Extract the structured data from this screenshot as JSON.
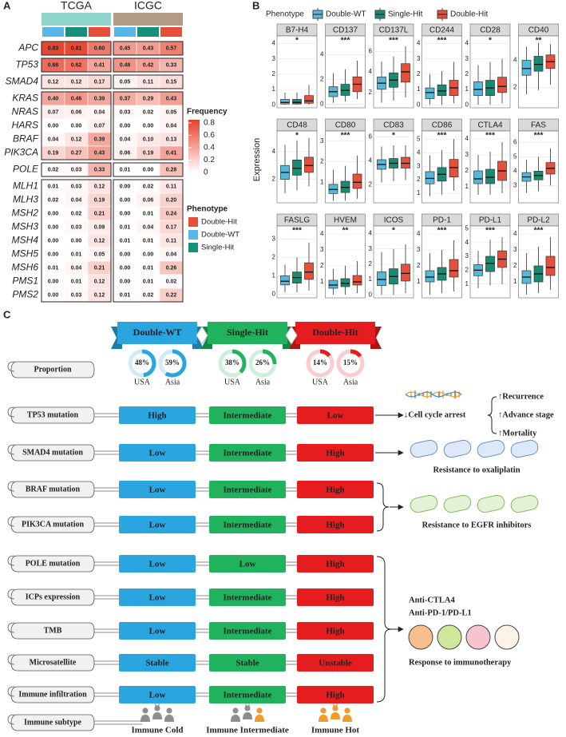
{
  "panel_a": {
    "label": "A",
    "cohorts": [
      "TCGA",
      "ICGC"
    ],
    "cohort_colors": [
      "#8fd5c9",
      "#b29c86"
    ],
    "column_colors": [
      "#58b7e6",
      "#16907a",
      "#e6503a"
    ],
    "blocks": [
      [
        {
          "gene": "APC",
          "values": [
            "0.83",
            "0.81",
            "0.60",
            "0.45",
            "0.43",
            "0.57"
          ]
        }
      ],
      [
        {
          "gene": "TP53",
          "values": [
            "0.66",
            "0.62",
            "0.41",
            "0.48",
            "0.42",
            "0.33"
          ]
        }
      ],
      [
        {
          "gene": "SMAD4",
          "values": [
            "0.12",
            "0.12",
            "0.17",
            "0.05",
            "0.11",
            "0.15"
          ]
        }
      ],
      [
        {
          "gene": "KRAS",
          "values": [
            "0.40",
            "0.46",
            "0.39",
            "0.37",
            "0.29",
            "0.43"
          ]
        },
        {
          "gene": "NRAS",
          "values": [
            "0.07",
            "0.06",
            "0.04",
            "0.03",
            "0.02",
            "0.05"
          ]
        },
        {
          "gene": "HARS",
          "values": [
            "0.00",
            "0.00",
            "0.07",
            "0.00",
            "0.00",
            "0.04"
          ]
        },
        {
          "gene": "BRAF",
          "values": [
            "0.04",
            "0.12",
            "0.39",
            "0.04",
            "0.10",
            "0.13"
          ]
        },
        {
          "gene": "PIK3CA",
          "values": [
            "0.19",
            "0.27",
            "0.43",
            "0.06",
            "0.19",
            "0.41"
          ]
        }
      ],
      [
        {
          "gene": "POLE",
          "values": [
            "0.02",
            "0.03",
            "0.33",
            "0.01",
            "0.00",
            "0.28"
          ]
        }
      ],
      [
        {
          "gene": "MLH1",
          "values": [
            "0.01",
            "0.03",
            "0.12",
            "0.00",
            "0.02",
            "0.11"
          ]
        },
        {
          "gene": "MLH3",
          "values": [
            "0.02",
            "0.04",
            "0.19",
            "0.00",
            "0.06",
            "0.20"
          ]
        },
        {
          "gene": "MSH2",
          "values": [
            "0.00",
            "0.02",
            "0.21",
            "0.00",
            "0.01",
            "0.24"
          ]
        },
        {
          "gene": "MSH3",
          "values": [
            "0.00",
            "0.03",
            "0.09",
            "0.01",
            "0.04",
            "0.17"
          ]
        },
        {
          "gene": "MSH4",
          "values": [
            "0.00",
            "0.00",
            "0.12",
            "0.01",
            "0.01",
            "0.11"
          ]
        },
        {
          "gene": "MSH5",
          "values": [
            "0.00",
            "0.01",
            "0.05",
            "0.00",
            "0.00",
            "0.04"
          ]
        },
        {
          "gene": "MSH6",
          "values": [
            "0.01",
            "0.04",
            "0.21",
            "0.00",
            "0.01",
            "0.26"
          ]
        },
        {
          "gene": "PMS1",
          "values": [
            "0.00",
            "0.01",
            "0.12",
            "0.00",
            "0.01",
            "0.02"
          ]
        },
        {
          "gene": "PMS2",
          "values": [
            "0.00",
            "0.03",
            "0.12",
            "0.01",
            "0.02",
            "0.22"
          ]
        }
      ]
    ],
    "scale": {
      "title": "Frequency",
      "lim": [
        0,
        0.85
      ],
      "ticks": [
        0.8,
        0.6,
        0.4,
        0.2,
        0
      ],
      "colors": [
        "#ffffff",
        "#e6412a"
      ]
    },
    "legend": {
      "title": "Phenotype",
      "items": [
        {
          "name": "Double-Hit",
          "color": "#e6503a"
        },
        {
          "name": "Double-WT",
          "color": "#58b7e6"
        },
        {
          "name": "Single-Hit",
          "color": "#16907a"
        }
      ]
    }
  },
  "panel_b": {
    "label": "B",
    "legend_title": "Phenotype",
    "groups": [
      {
        "name": "Double-WT",
        "color": "#56b8d8"
      },
      {
        "name": "Single-Hit",
        "color": "#1a8b73"
      },
      {
        "name": "Double-Hit",
        "color": "#e4503b"
      }
    ],
    "y_label": "Expression",
    "panels": [
      {
        "title": "B7-H4",
        "significance": "*",
        "ylim": [
          -0.2,
          4.5
        ],
        "yticks": [
          0,
          1,
          2,
          3,
          4
        ],
        "boxes": [
          {
            "low": 0,
            "q1": 0.05,
            "median": 0.15,
            "q3": 0.35,
            "high": 0.8
          },
          {
            "low": 0,
            "q1": 0.05,
            "median": 0.15,
            "q3": 0.35,
            "high": 0.8
          },
          {
            "low": 0,
            "q1": 0.1,
            "median": 0.25,
            "q3": 0.6,
            "high": 1.3
          }
        ]
      },
      {
        "title": "CD137",
        "significance": "***",
        "ylim": [
          -0.3,
          5.5
        ],
        "yticks": [
          0,
          2,
          4
        ],
        "boxes": [
          {
            "low": 0.1,
            "q1": 0.6,
            "median": 1.0,
            "q3": 1.4,
            "high": 2.5
          },
          {
            "low": 0.2,
            "q1": 0.7,
            "median": 1.1,
            "q3": 1.6,
            "high": 2.8
          },
          {
            "low": 0.4,
            "q1": 1.0,
            "median": 1.6,
            "q3": 2.2,
            "high": 3.5
          }
        ]
      },
      {
        "title": "CD137L",
        "significance": "***",
        "ylim": [
          0.5,
          7.5
        ],
        "yticks": [
          2,
          4,
          6
        ],
        "boxes": [
          {
            "low": 1,
            "q1": 2.3,
            "median": 2.9,
            "q3": 3.5,
            "high": 5
          },
          {
            "low": 1.2,
            "q1": 2.5,
            "median": 3.2,
            "q3": 3.9,
            "high": 5.5
          },
          {
            "low": 1.5,
            "q1": 3,
            "median": 4,
            "q3": 4.8,
            "high": 6.5
          }
        ]
      },
      {
        "title": "CD244",
        "significance": "***",
        "ylim": [
          -0.2,
          4.5
        ],
        "yticks": [
          0,
          1,
          2,
          3,
          4
        ],
        "boxes": [
          {
            "low": 0,
            "q1": 0.4,
            "median": 0.8,
            "q3": 1.1,
            "high": 2
          },
          {
            "low": 0,
            "q1": 0.6,
            "median": 0.9,
            "q3": 1.3,
            "high": 2.2
          },
          {
            "low": 0.1,
            "q1": 0.6,
            "median": 1.1,
            "q3": 1.6,
            "high": 2.8
          }
        ]
      },
      {
        "title": "CD28",
        "significance": "*",
        "ylim": [
          -0.2,
          4.5
        ],
        "yticks": [
          0,
          1,
          2,
          3,
          4
        ],
        "boxes": [
          {
            "low": 0,
            "q1": 0.6,
            "median": 1.0,
            "q3": 1.5,
            "high": 2.6
          },
          {
            "low": 0,
            "q1": 0.6,
            "median": 1.1,
            "q3": 1.6,
            "high": 2.8
          },
          {
            "low": 0.1,
            "q1": 0.8,
            "median": 1.2,
            "q3": 1.8,
            "high": 3
          }
        ]
      },
      {
        "title": "CD40",
        "significance": "**",
        "ylim": [
          0.5,
          5.8
        ],
        "yticks": [
          2,
          4
        ],
        "boxes": [
          {
            "low": 1.5,
            "q1": 2.9,
            "median": 3.4,
            "q3": 4,
            "high": 5
          },
          {
            "low": 1.8,
            "q1": 3.2,
            "median": 3.7,
            "q3": 4.3,
            "high": 5.3
          },
          {
            "low": 2.2,
            "q1": 3.4,
            "median": 3.9,
            "q3": 4.4,
            "high": 5.2
          }
        ]
      },
      {
        "title": "CD48",
        "significance": "*",
        "ylim": [
          0.3,
          5.5
        ],
        "yticks": [
          2,
          4
        ],
        "boxes": [
          {
            "low": 1,
            "q1": 2,
            "median": 2.5,
            "q3": 3,
            "high": 4.5
          },
          {
            "low": 1.2,
            "q1": 2.3,
            "median": 2.8,
            "q3": 3.4,
            "high": 4.8
          },
          {
            "low": 1.5,
            "q1": 2.5,
            "median": 3,
            "q3": 3.6,
            "high": 5
          }
        ]
      },
      {
        "title": "CD80",
        "significance": "***",
        "ylim": [
          0,
          3.5
        ],
        "yticks": [
          1,
          2,
          3
        ],
        "boxes": [
          {
            "low": 0.1,
            "q1": 0.45,
            "median": 0.65,
            "q3": 0.9,
            "high": 1.6
          },
          {
            "low": 0.1,
            "q1": 0.5,
            "median": 0.75,
            "q3": 1.05,
            "high": 1.8
          },
          {
            "low": 0.2,
            "q1": 0.7,
            "median": 1.0,
            "q3": 1.4,
            "high": 2.3
          }
        ]
      },
      {
        "title": "CD83",
        "significance": "*",
        "ylim": [
          0.5,
          6.5
        ],
        "yticks": [
          2,
          4,
          6
        ],
        "boxes": [
          {
            "low": 2.2,
            "q1": 3.3,
            "median": 3.7,
            "q3": 4.1,
            "high": 5.2
          },
          {
            "low": 2.3,
            "q1": 3.4,
            "median": 3.8,
            "q3": 4.2,
            "high": 5.3
          },
          {
            "low": 2.4,
            "q1": 3.4,
            "median": 3.8,
            "q3": 4.3,
            "high": 5.3
          }
        ]
      },
      {
        "title": "CD86",
        "significance": "***",
        "ylim": [
          0.3,
          5.6
        ],
        "yticks": [
          1,
          2,
          3,
          4,
          5
        ],
        "boxes": [
          {
            "low": 0.8,
            "q1": 1.7,
            "median": 2.1,
            "q3": 2.6,
            "high": 3.8
          },
          {
            "low": 0.9,
            "q1": 1.9,
            "median": 2.4,
            "q3": 2.9,
            "high": 4.2
          },
          {
            "low": 1.2,
            "q1": 2.2,
            "median": 2.9,
            "q3": 3.5,
            "high": 5
          }
        ]
      },
      {
        "title": "CTLA4",
        "significance": "***",
        "ylim": [
          0,
          4.5
        ],
        "yticks": [
          1,
          2,
          3,
          4
        ],
        "boxes": [
          {
            "low": 0.5,
            "q1": 1.2,
            "median": 1.5,
            "q3": 2,
            "high": 3
          },
          {
            "low": 0.5,
            "q1": 1.2,
            "median": 1.6,
            "q3": 2.1,
            "high": 3.2
          },
          {
            "low": 0.6,
            "q1": 1.4,
            "median": 2,
            "q3": 2.6,
            "high": 3.8
          }
        ]
      },
      {
        "title": "FAS",
        "significance": "***",
        "ylim": [
          1.8,
          6.8
        ],
        "yticks": [
          3,
          4,
          5,
          6
        ],
        "boxes": [
          {
            "low": 2.5,
            "q1": 3.3,
            "median": 3.6,
            "q3": 3.9,
            "high": 4.8
          },
          {
            "low": 2.6,
            "q1": 3.4,
            "median": 3.7,
            "q3": 4,
            "high": 5
          },
          {
            "low": 3,
            "q1": 3.8,
            "median": 4.2,
            "q3": 4.6,
            "high": 5.6
          }
        ]
      },
      {
        "title": "FASLG",
        "significance": "***",
        "ylim": [
          -0.2,
          3.7
        ],
        "yticks": [
          0,
          1,
          2,
          3
        ],
        "boxes": [
          {
            "low": 0.1,
            "q1": 0.5,
            "median": 0.7,
            "q3": 1,
            "high": 1.6
          },
          {
            "low": 0.1,
            "q1": 0.6,
            "median": 0.9,
            "q3": 1.2,
            "high": 2
          },
          {
            "low": 0.2,
            "q1": 0.8,
            "median": 1.2,
            "q3": 1.7,
            "high": 2.8
          }
        ]
      },
      {
        "title": "HVEM",
        "significance": "**",
        "ylim": [
          0,
          4.5
        ],
        "yticks": [
          1,
          2,
          3,
          4
        ],
        "boxes": [
          {
            "low": 0.2,
            "q1": 0.6,
            "median": 0.8,
            "q3": 1.1,
            "high": 1.8
          },
          {
            "low": 0.2,
            "q1": 0.7,
            "median": 0.9,
            "q3": 1.2,
            "high": 2
          },
          {
            "low": 0.3,
            "q1": 0.8,
            "median": 1,
            "q3": 1.4,
            "high": 2.3
          }
        ]
      },
      {
        "title": "ICOS",
        "significance": "*",
        "ylim": [
          -0.2,
          4.5
        ],
        "yticks": [
          0,
          1,
          2,
          3,
          4
        ],
        "boxes": [
          {
            "low": 0,
            "q1": 0.6,
            "median": 1.0,
            "q3": 1.5,
            "high": 2.8
          },
          {
            "low": 0,
            "q1": 0.7,
            "median": 1.2,
            "q3": 1.7,
            "high": 3
          },
          {
            "low": 0.1,
            "q1": 0.9,
            "median": 1.4,
            "q3": 2,
            "high": 3.3
          }
        ]
      },
      {
        "title": "PD-1",
        "significance": "***",
        "ylim": [
          0,
          4.5
        ],
        "yticks": [
          1,
          2,
          3,
          4
        ],
        "boxes": [
          {
            "low": 0.2,
            "q1": 1,
            "median": 1.3,
            "q3": 1.7,
            "high": 2.8
          },
          {
            "low": 0.3,
            "q1": 1.1,
            "median": 1.5,
            "q3": 1.9,
            "high": 3
          },
          {
            "low": 0.4,
            "q1": 1.3,
            "median": 1.7,
            "q3": 2.4,
            "high": 3.6
          }
        ]
      },
      {
        "title": "PD-L1",
        "significance": "***",
        "ylim": [
          0,
          5.2
        ],
        "yticks": [
          1,
          2,
          3,
          4,
          5
        ],
        "boxes": [
          {
            "low": 0.7,
            "q1": 1.6,
            "median": 2,
            "q3": 2.4,
            "high": 3.4
          },
          {
            "low": 0.9,
            "q1": 1.9,
            "median": 2.5,
            "q3": 3,
            "high": 4.2
          },
          {
            "low": 1,
            "q1": 2.2,
            "median": 2.8,
            "q3": 3.4,
            "high": 4.4
          }
        ]
      },
      {
        "title": "PD-L2",
        "significance": "***",
        "ylim": [
          0,
          4.5
        ],
        "yticks": [
          1,
          2,
          3,
          4
        ],
        "boxes": [
          {
            "low": 0.2,
            "q1": 0.9,
            "median": 1.3,
            "q3": 1.7,
            "high": 2.8
          },
          {
            "low": 0.3,
            "q1": 1.0,
            "median": 1.5,
            "q3": 2,
            "high": 3.2
          },
          {
            "low": 0.5,
            "q1": 1.4,
            "median": 1.9,
            "q3": 2.6,
            "high": 3.8
          }
        ]
      }
    ]
  },
  "panel_c": {
    "label": "C",
    "phenotypes": [
      {
        "name": "Double-WT",
        "color": "#2ba5e0"
      },
      {
        "name": "Single-Hit",
        "color": "#20b25c"
      },
      {
        "name": "Double-Hit",
        "color": "#e51d1f"
      }
    ],
    "proportion": {
      "label": "Proportion",
      "rings": [
        [
          {
            "region": "USA",
            "value": 48,
            "value_label": "48%"
          },
          {
            "region": "Asia",
            "value": 59,
            "value_label": "59%"
          }
        ],
        [
          {
            "region": "USA",
            "value": 38,
            "value_label": "38%"
          },
          {
            "region": "Asia",
            "value": 26,
            "value_label": "26%"
          }
        ],
        [
          {
            "region": "USA",
            "value": 14,
            "value_label": "14%"
          },
          {
            "region": "Asia",
            "value": 15,
            "value_label": "15%"
          }
        ]
      ]
    },
    "rows": [
      {
        "label": "TP53 mutation",
        "cells": [
          "High",
          "Intermediate",
          "Low"
        ]
      },
      {
        "label": "SMAD4 mutation",
        "cells": [
          "Low",
          "Intermediate",
          "High"
        ]
      },
      {
        "label": "BRAF mutation",
        "cells": [
          "Low",
          "Intermediate",
          "High"
        ]
      },
      {
        "label": "PIK3CA mutation",
        "cells": [
          "Low",
          "Intermediate",
          "High"
        ]
      },
      {
        "label": "POLE mutation",
        "cells": [
          "Low",
          "Low",
          "High"
        ]
      },
      {
        "label": "ICPs expression",
        "cells": [
          "Low",
          "Intermediate",
          "High"
        ]
      },
      {
        "label": "TMB",
        "cells": [
          "Low",
          "Intermediate",
          "High"
        ]
      },
      {
        "label": "Microsatellite",
        "cells": [
          "Stable",
          "Stable",
          "Unstable"
        ]
      },
      {
        "label": "Immune infiltration",
        "cells": [
          "Low",
          "Intermediate",
          "High"
        ]
      }
    ],
    "subtype": {
      "label": "Immune subtype",
      "cells": [
        "Immune Cold",
        "Immune Intermediate",
        "Immune Hot"
      ]
    },
    "annotations": {
      "tp53": {
        "left": "↓Cell cycle arrest",
        "right": [
          "↑Recurrence",
          "↑Advance stage",
          "↑Mortality"
        ]
      },
      "smad4": "Resistance to oxaliplatin",
      "egfr": "Resistance to EGFR inhibitors",
      "immuno": {
        "drugs": [
          "Anti-CTLA4",
          "Anti-PD-1/PD-L1"
        ],
        "result": "Response to immunotherapy"
      }
    }
  }
}
